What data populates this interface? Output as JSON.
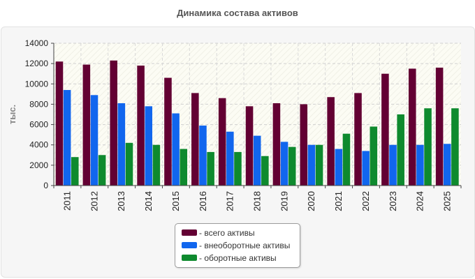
{
  "chart_data": {
    "type": "bar",
    "title": "Динамика состава активов",
    "ylabel": "тыс.",
    "xlabel": "",
    "ylim": [
      0,
      14000
    ],
    "yticks": [
      0,
      2000,
      4000,
      6000,
      8000,
      10000,
      12000,
      14000
    ],
    "grid": true,
    "legend_position": "bottom-center",
    "categories": [
      "2011",
      "2012",
      "2013",
      "2014",
      "2015",
      "2016",
      "2017",
      "2018",
      "2019",
      "2020",
      "2021",
      "2022",
      "2023",
      "2024",
      "2025"
    ],
    "series": [
      {
        "name": "- всего активы",
        "color": "#630033",
        "values": [
          12200,
          11900,
          12300,
          11800,
          10600,
          9100,
          8600,
          7800,
          8100,
          8000,
          8700,
          9100,
          11000,
          11500,
          11600
        ]
      },
      {
        "name": "- внеоборотные активы",
        "color": "#1166ee",
        "values": [
          9400,
          8900,
          8100,
          7800,
          7100,
          5900,
          5300,
          4900,
          4300,
          4000,
          3600,
          3400,
          4000,
          4000,
          4100
        ]
      },
      {
        "name": "- оборотные активы",
        "color": "#0e8a2e",
        "values": [
          2800,
          3000,
          4200,
          4000,
          3600,
          3300,
          3300,
          2900,
          3800,
          4000,
          5100,
          5800,
          7000,
          7600,
          7600
        ]
      }
    ]
  }
}
